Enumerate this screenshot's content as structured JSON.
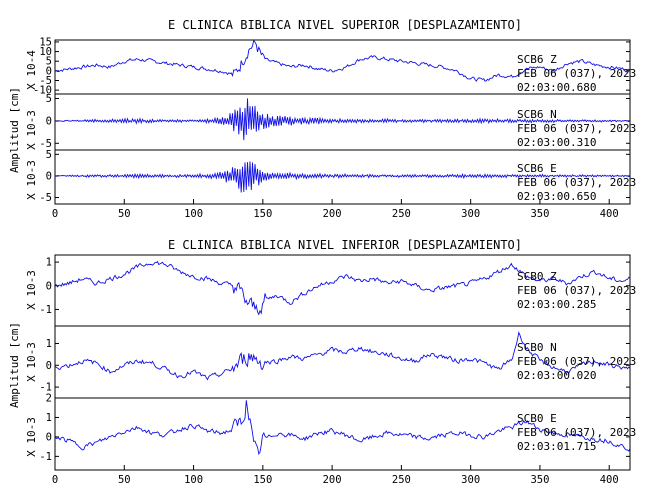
{
  "chart_data": [
    {
      "type": "line",
      "title": "E CLINICA BIBLICA NIVEL SUPERIOR [DESPLAZAMIENTO]",
      "ylabel": "Amplitud [cm]",
      "xlim": [
        0,
        415
      ],
      "x_ticks": [
        0,
        50,
        100,
        150,
        200,
        250,
        300,
        350,
        400
      ],
      "panels": [
        {
          "scale_label": "X 10-4",
          "ylim": [
            -12,
            16
          ],
          "y_ticks": [
            15,
            10,
            5,
            0,
            -5,
            -10
          ],
          "info": [
            "SCB6   Z",
            "FEB 06 (037), 2023",
            "02:03:00.680"
          ],
          "series": [
            {
              "x": [
                0,
                10,
                20,
                30,
                40,
                50,
                60,
                70,
                80,
                90,
                100,
                110,
                120,
                130,
                135,
                140,
                145,
                150,
                160,
                170,
                180,
                190,
                200,
                210,
                220,
                230,
                240,
                250,
                260,
                270,
                280,
                290,
                300,
                310,
                320,
                330,
                340,
                350,
                360,
                370,
                380,
                390,
                400,
                410,
                415
              ],
              "values": [
                0,
                1,
                2,
                3,
                2,
                5,
                6,
                5,
                4,
                3,
                2,
                1,
                0,
                -2,
                5,
                12,
                14,
                6,
                4,
                2,
                3,
                1,
                0,
                2,
                6,
                7,
                6,
                5,
                4,
                3,
                2,
                0,
                -4,
                -5,
                -2,
                -3,
                1,
                2,
                0,
                4,
                5,
                3,
                2,
                1,
                0
              ]
            }
          ]
        },
        {
          "scale_label": "X 10-3",
          "ylim": [
            -6.5,
            6
          ],
          "y_ticks": [
            5,
            0,
            -5
          ],
          "info": [
            "SCB6   N",
            "FEB 06 (037), 2023",
            "02:03:00.310"
          ],
          "series": [
            {
              "x": [
                0,
                20,
                40,
                60,
                80,
                100,
                110,
                120,
                125,
                130,
                135,
                138,
                140,
                143,
                146,
                150,
                160,
                180,
                200,
                220,
                240,
                260,
                280,
                300,
                320,
                340,
                360,
                380,
                400,
                415
              ],
              "values": [
                0,
                0.2,
                0.4,
                0.5,
                0.3,
                0.2,
                0.5,
                1,
                1.5,
                2.5,
                4,
                5.5,
                5,
                4,
                3,
                2,
                1.2,
                0.8,
                0.5,
                0.4,
                0.4,
                0.3,
                0.3,
                0.5,
                0.4,
                0.4,
                0.3,
                0.2,
                0.2,
                0.1
              ]
            }
          ]
        },
        {
          "scale_label": "X 10-3",
          "ylim": [
            -6.5,
            6
          ],
          "y_ticks": [
            5,
            0,
            -5
          ],
          "info": [
            "SCB6   E",
            "FEB 06 (037), 2023",
            "02:03:00.650"
          ],
          "series": [
            {
              "x": [
                0,
                20,
                40,
                60,
                80,
                100,
                110,
                120,
                125,
                130,
                135,
                138,
                140,
                143,
                146,
                150,
                160,
                180,
                200,
                220,
                240,
                260,
                280,
                300,
                320,
                340,
                360,
                380,
                400,
                415
              ],
              "values": [
                0,
                0.2,
                0.3,
                0.4,
                0.3,
                0.3,
                0.5,
                1,
                1.8,
                3,
                4,
                4.5,
                4,
                3.5,
                2.5,
                1.5,
                0.8,
                0.6,
                0.4,
                0.3,
                0.3,
                0.3,
                0.3,
                0.4,
                0.3,
                0.3,
                0.2,
                0.2,
                0.2,
                0.1
              ]
            }
          ]
        }
      ]
    },
    {
      "type": "line",
      "title": "E CLINICA BIBLICA NIVEL INFERIOR [DESPLAZAMIENTO]",
      "ylabel": "Amplitud [cm]",
      "xlim": [
        0,
        415
      ],
      "x_ticks": [
        0,
        50,
        100,
        150,
        200,
        250,
        300,
        350,
        400
      ],
      "panels": [
        {
          "scale_label": "X 10-3",
          "ylim": [
            -1.7,
            1.3
          ],
          "y_ticks": [
            1,
            0,
            -1
          ],
          "info": [
            "SCB0   Z",
            "FEB 06 (037), 2023",
            "02:03:00.285"
          ],
          "series": [
            {
              "x": [
                0,
                10,
                20,
                30,
                40,
                50,
                60,
                70,
                80,
                90,
                100,
                110,
                120,
                130,
                135,
                140,
                145,
                150,
                160,
                170,
                180,
                190,
                200,
                210,
                220,
                230,
                240,
                250,
                260,
                270,
                280,
                290,
                300,
                310,
                320,
                330,
                340,
                350,
                360,
                370,
                380,
                390,
                400,
                410,
                415
              ],
              "values": [
                0,
                0.1,
                0.3,
                0.1,
                0.3,
                0.5,
                0.8,
                1.0,
                0.9,
                0.6,
                0.4,
                0.3,
                0.1,
                0,
                -0.4,
                -0.8,
                -1.0,
                -0.7,
                -0.4,
                -0.7,
                -0.3,
                0,
                0.2,
                0.4,
                0.2,
                0.3,
                0.1,
                0.2,
                0,
                -0.2,
                -0.1,
                0,
                0.1,
                0.3,
                0.6,
                0.9,
                0.4,
                0.2,
                0.3,
                0.1,
                0.4,
                0.6,
                0.3,
                0.2,
                0.3
              ]
            }
          ]
        },
        {
          "scale_label": "X 10-3",
          "ylim": [
            -1.5,
            1.8
          ],
          "y_ticks": [
            1,
            0,
            -1
          ],
          "info": [
            "SCB0   N",
            "FEB 06 (037), 2023",
            "02:03:00.020"
          ],
          "series": [
            {
              "x": [
                0,
                10,
                20,
                30,
                40,
                50,
                60,
                70,
                80,
                90,
                100,
                110,
                120,
                130,
                135,
                140,
                145,
                150,
                160,
                170,
                180,
                190,
                200,
                210,
                220,
                230,
                240,
                250,
                260,
                270,
                280,
                290,
                300,
                310,
                320,
                330,
                335,
                340,
                350,
                360,
                370,
                380,
                390,
                400,
                410,
                415
              ],
              "values": [
                -0.1,
                0,
                0.2,
                0.1,
                -0.3,
                0,
                0.2,
                0.1,
                -0.2,
                -0.5,
                -0.3,
                -0.6,
                -0.4,
                -0.1,
                0.2,
                0.5,
                0.3,
                0.1,
                0.2,
                0.4,
                0.3,
                0.5,
                0.7,
                0.6,
                0.8,
                0.6,
                0.5,
                0.3,
                0.2,
                0.5,
                0.4,
                0.2,
                0.3,
                0.1,
                -0.2,
                0.3,
                1.5,
                0.8,
                0.2,
                -0.1,
                -0.3,
                0,
                0.2,
                0,
                -0.1,
                -0.2
              ]
            }
          ]
        },
        {
          "scale_label": "X 10-3",
          "ylim": [
            -1.7,
            2.0
          ],
          "y_ticks": [
            2,
            1,
            0,
            -1
          ],
          "info": [
            "SCB0   E",
            "FEB 06 (037), 2023",
            "02:03:01.715"
          ],
          "series": [
            {
              "x": [
                0,
                10,
                20,
                30,
                40,
                50,
                60,
                70,
                80,
                90,
                100,
                110,
                120,
                130,
                135,
                138,
                140,
                143,
                146,
                150,
                160,
                170,
                180,
                190,
                200,
                210,
                220,
                230,
                240,
                250,
                260,
                270,
                280,
                290,
                300,
                310,
                320,
                330,
                340,
                350,
                360,
                370,
                380,
                390,
                400,
                410,
                415
              ],
              "values": [
                0,
                -0.2,
                -0.5,
                -0.3,
                0,
                0.3,
                0.5,
                0.2,
                0.1,
                0.4,
                0.6,
                0.3,
                0.2,
                0.4,
                0.8,
                1.8,
                1.2,
                -0.5,
                -1.0,
                -0.2,
                0.2,
                0.1,
                -0.1,
                0.2,
                0.3,
                0.1,
                -0.2,
                0,
                0.2,
                0.1,
                0,
                -0.1,
                0.1,
                0.2,
                0.1,
                0,
                0.3,
                0.5,
                0.8,
                0.4,
                0.2,
                0.1,
                0,
                -0.1,
                -0.2,
                -0.5,
                -0.6
              ]
            }
          ]
        }
      ]
    }
  ]
}
